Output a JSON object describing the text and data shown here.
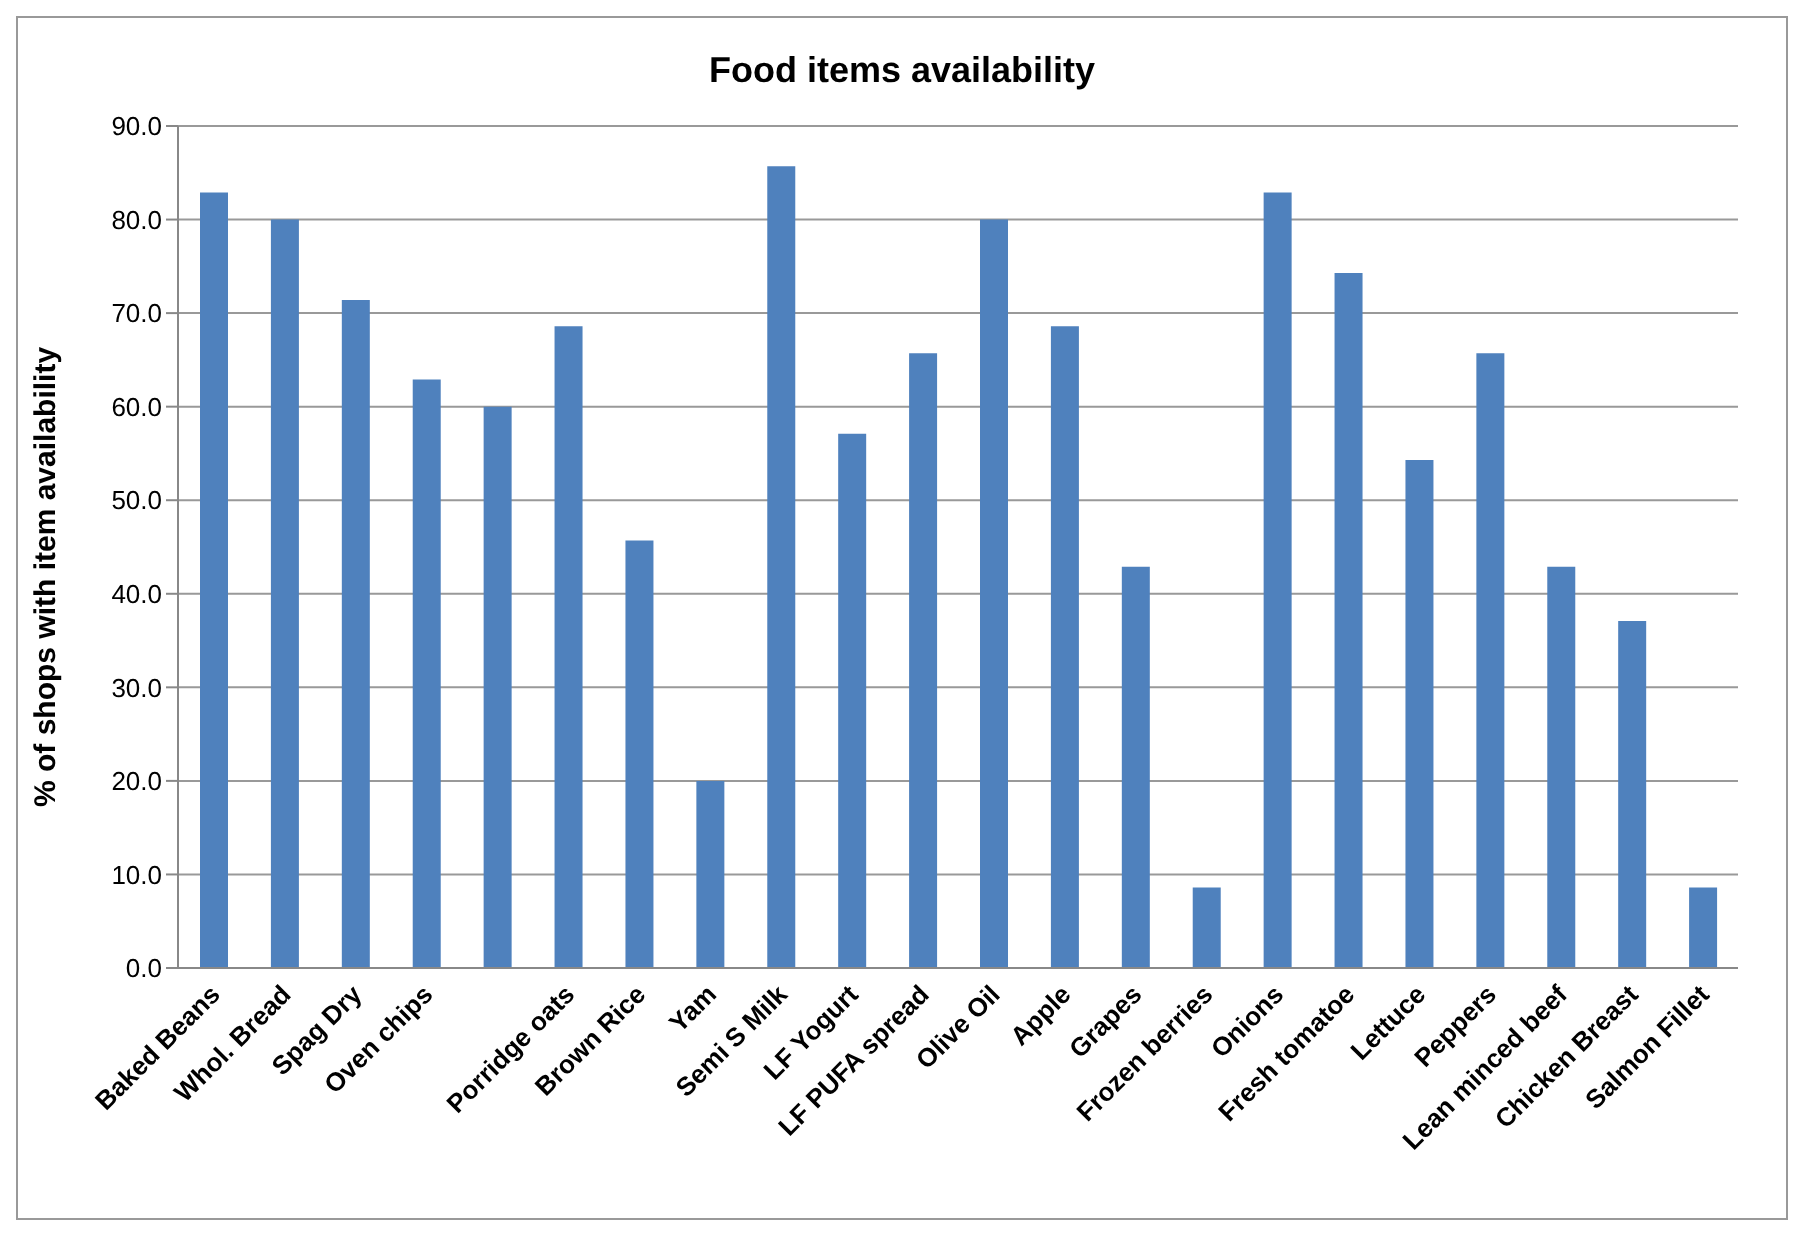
{
  "chart_data": {
    "type": "bar",
    "title": "Food items availability",
    "ylabel": "% of shops with item availability",
    "categories": [
      "Baked Beans",
      "Whol. Bread",
      "Spag Dry",
      "Oven chips",
      null,
      "Porridge oats",
      "Brown Rice",
      "Yam",
      "Semi S Milk",
      "LF Yogurt",
      "LF PUFA spread",
      "Olive Oil",
      "Apple",
      "Grapes",
      "Frozen berries",
      "Onions",
      "Fresh tomatoe",
      "Lettuce",
      "Peppers",
      "Lean minced beef",
      "Chicken Breast",
      "Salmon Fillet"
    ],
    "values": [
      82.9,
      80.0,
      71.4,
      62.9,
      60.0,
      68.6,
      45.7,
      20.0,
      85.7,
      57.1,
      65.7,
      80.0,
      68.6,
      42.9,
      8.6,
      82.9,
      74.3,
      54.3,
      65.7,
      42.9,
      37.1,
      8.6
    ],
    "color": "#4f81bd",
    "ylim": [
      0,
      90
    ],
    "yticks": [
      {
        "value": 0,
        "label": "0.0"
      },
      {
        "value": 10,
        "label": "10.0"
      },
      {
        "value": 20,
        "label": "20.0"
      },
      {
        "value": 30,
        "label": "30.0"
      },
      {
        "value": 40,
        "label": "40.0"
      },
      {
        "value": 50,
        "label": "50.0"
      },
      {
        "value": 60,
        "label": "60.0"
      },
      {
        "value": 70,
        "label": "70.0"
      },
      {
        "value": 80,
        "label": "80.0"
      },
      {
        "value": 90,
        "label": "90.0"
      }
    ],
    "grid": "y"
  }
}
